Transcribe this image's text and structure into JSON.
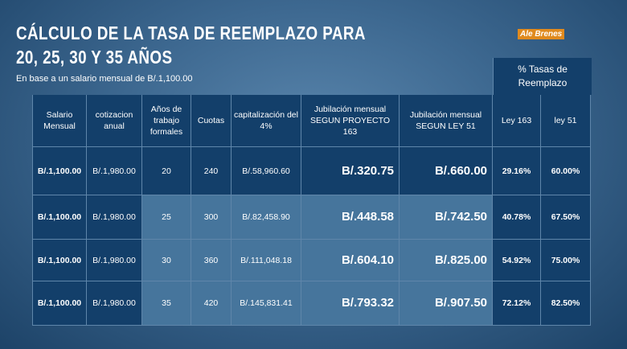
{
  "header": {
    "title_line1": "CÁLCULO DE LA TASA DE REEMPLAZO PARA",
    "title_line2": "20, 25, 30 Y 35 AÑOS",
    "subtitle": "En base a un salario mensual de B/.1,100.00",
    "logo": "Ale Brenes"
  },
  "table": {
    "group_header": "% Tasas de Reemplazo",
    "columns": [
      "Salario Mensual",
      "cotizacion anual",
      "Años de trabajo formales",
      "Cuotas",
      "capitalización del 4%",
      "Jubilación mensual SEGUN PROYECTO 163",
      "Jubilación mensual SEGUN LEY 51",
      "Ley 163",
      "ley 51"
    ],
    "rows": [
      [
        "B/.1,100.00",
        "B/.1,980.00",
        "20",
        "240",
        "B/.58,960.60",
        "B/.320.75",
        "B/.660.00",
        "29.16%",
        "60.00%"
      ],
      [
        "B/.1,100.00",
        "B/.1,980.00",
        "25",
        "300",
        "B/.82,458.90",
        "B/.448.58",
        "B/.742.50",
        "40.78%",
        "67.50%"
      ],
      [
        "B/.1,100.00",
        "B/.1,980.00",
        "30",
        "360",
        "B/.111,048.18",
        "B/.604.10",
        "B/.825.00",
        "54.92%",
        "75.00%"
      ],
      [
        "B/.1,100.00",
        "B/.1,980.00",
        "35",
        "420",
        "B/.145,831.41",
        "B/.793.32",
        "B/.907.50",
        "72.12%",
        "82.50%"
      ]
    ]
  }
}
